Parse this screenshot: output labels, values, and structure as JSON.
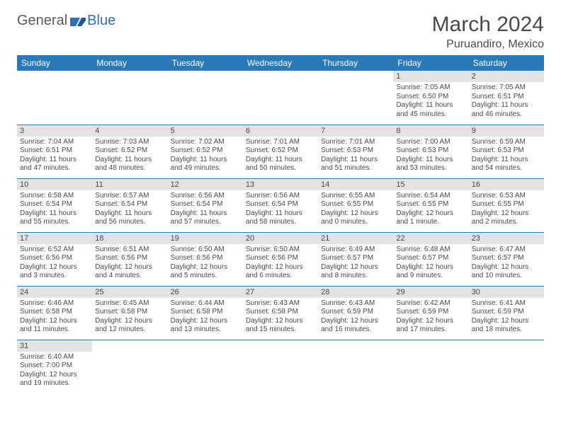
{
  "brand": {
    "general": "General",
    "blue": "Blue"
  },
  "title": "March 2024",
  "location": "Puruandiro, Mexico",
  "colors": {
    "header_bg": "#2a7ab8",
    "header_text": "#ffffff",
    "daynum_bg": "#e3e3e3",
    "text": "#4a4a4a",
    "row_divider": "#2a7ab8",
    "logo_gray": "#5a5a5a",
    "logo_blue": "#2a72b5"
  },
  "weekdays": [
    "Sunday",
    "Monday",
    "Tuesday",
    "Wednesday",
    "Thursday",
    "Friday",
    "Saturday"
  ],
  "weeks": [
    [
      null,
      null,
      null,
      null,
      null,
      {
        "day": "1",
        "sunrise": "Sunrise: 7:05 AM",
        "sunset": "Sunset: 6:50 PM",
        "daylight": "Daylight: 11 hours and 45 minutes."
      },
      {
        "day": "2",
        "sunrise": "Sunrise: 7:05 AM",
        "sunset": "Sunset: 6:51 PM",
        "daylight": "Daylight: 11 hours and 46 minutes."
      }
    ],
    [
      {
        "day": "3",
        "sunrise": "Sunrise: 7:04 AM",
        "sunset": "Sunset: 6:51 PM",
        "daylight": "Daylight: 11 hours and 47 minutes."
      },
      {
        "day": "4",
        "sunrise": "Sunrise: 7:03 AM",
        "sunset": "Sunset: 6:52 PM",
        "daylight": "Daylight: 11 hours and 48 minutes."
      },
      {
        "day": "5",
        "sunrise": "Sunrise: 7:02 AM",
        "sunset": "Sunset: 6:52 PM",
        "daylight": "Daylight: 11 hours and 49 minutes."
      },
      {
        "day": "6",
        "sunrise": "Sunrise: 7:01 AM",
        "sunset": "Sunset: 6:52 PM",
        "daylight": "Daylight: 11 hours and 50 minutes."
      },
      {
        "day": "7",
        "sunrise": "Sunrise: 7:01 AM",
        "sunset": "Sunset: 6:53 PM",
        "daylight": "Daylight: 11 hours and 51 minutes."
      },
      {
        "day": "8",
        "sunrise": "Sunrise: 7:00 AM",
        "sunset": "Sunset: 6:53 PM",
        "daylight": "Daylight: 11 hours and 53 minutes."
      },
      {
        "day": "9",
        "sunrise": "Sunrise: 6:59 AM",
        "sunset": "Sunset: 6:53 PM",
        "daylight": "Daylight: 11 hours and 54 minutes."
      }
    ],
    [
      {
        "day": "10",
        "sunrise": "Sunrise: 6:58 AM",
        "sunset": "Sunset: 6:54 PM",
        "daylight": "Daylight: 11 hours and 55 minutes."
      },
      {
        "day": "11",
        "sunrise": "Sunrise: 6:57 AM",
        "sunset": "Sunset: 6:54 PM",
        "daylight": "Daylight: 11 hours and 56 minutes."
      },
      {
        "day": "12",
        "sunrise": "Sunrise: 6:56 AM",
        "sunset": "Sunset: 6:54 PM",
        "daylight": "Daylight: 11 hours and 57 minutes."
      },
      {
        "day": "13",
        "sunrise": "Sunrise: 6:56 AM",
        "sunset": "Sunset: 6:54 PM",
        "daylight": "Daylight: 11 hours and 58 minutes."
      },
      {
        "day": "14",
        "sunrise": "Sunrise: 6:55 AM",
        "sunset": "Sunset: 6:55 PM",
        "daylight": "Daylight: 12 hours and 0 minutes."
      },
      {
        "day": "15",
        "sunrise": "Sunrise: 6:54 AM",
        "sunset": "Sunset: 6:55 PM",
        "daylight": "Daylight: 12 hours and 1 minute."
      },
      {
        "day": "16",
        "sunrise": "Sunrise: 6:53 AM",
        "sunset": "Sunset: 6:55 PM",
        "daylight": "Daylight: 12 hours and 2 minutes."
      }
    ],
    [
      {
        "day": "17",
        "sunrise": "Sunrise: 6:52 AM",
        "sunset": "Sunset: 6:56 PM",
        "daylight": "Daylight: 12 hours and 3 minutes."
      },
      {
        "day": "18",
        "sunrise": "Sunrise: 6:51 AM",
        "sunset": "Sunset: 6:56 PM",
        "daylight": "Daylight: 12 hours and 4 minutes."
      },
      {
        "day": "19",
        "sunrise": "Sunrise: 6:50 AM",
        "sunset": "Sunset: 6:56 PM",
        "daylight": "Daylight: 12 hours and 5 minutes."
      },
      {
        "day": "20",
        "sunrise": "Sunrise: 6:50 AM",
        "sunset": "Sunset: 6:56 PM",
        "daylight": "Daylight: 12 hours and 6 minutes."
      },
      {
        "day": "21",
        "sunrise": "Sunrise: 6:49 AM",
        "sunset": "Sunset: 6:57 PM",
        "daylight": "Daylight: 12 hours and 8 minutes."
      },
      {
        "day": "22",
        "sunrise": "Sunrise: 6:48 AM",
        "sunset": "Sunset: 6:57 PM",
        "daylight": "Daylight: 12 hours and 9 minutes."
      },
      {
        "day": "23",
        "sunrise": "Sunrise: 6:47 AM",
        "sunset": "Sunset: 6:57 PM",
        "daylight": "Daylight: 12 hours and 10 minutes."
      }
    ],
    [
      {
        "day": "24",
        "sunrise": "Sunrise: 6:46 AM",
        "sunset": "Sunset: 6:58 PM",
        "daylight": "Daylight: 12 hours and 11 minutes."
      },
      {
        "day": "25",
        "sunrise": "Sunrise: 6:45 AM",
        "sunset": "Sunset: 6:58 PM",
        "daylight": "Daylight: 12 hours and 12 minutes."
      },
      {
        "day": "26",
        "sunrise": "Sunrise: 6:44 AM",
        "sunset": "Sunset: 6:58 PM",
        "daylight": "Daylight: 12 hours and 13 minutes."
      },
      {
        "day": "27",
        "sunrise": "Sunrise: 6:43 AM",
        "sunset": "Sunset: 6:58 PM",
        "daylight": "Daylight: 12 hours and 15 minutes."
      },
      {
        "day": "28",
        "sunrise": "Sunrise: 6:43 AM",
        "sunset": "Sunset: 6:59 PM",
        "daylight": "Daylight: 12 hours and 16 minutes."
      },
      {
        "day": "29",
        "sunrise": "Sunrise: 6:42 AM",
        "sunset": "Sunset: 6:59 PM",
        "daylight": "Daylight: 12 hours and 17 minutes."
      },
      {
        "day": "30",
        "sunrise": "Sunrise: 6:41 AM",
        "sunset": "Sunset: 6:59 PM",
        "daylight": "Daylight: 12 hours and 18 minutes."
      }
    ],
    [
      {
        "day": "31",
        "sunrise": "Sunrise: 6:40 AM",
        "sunset": "Sunset: 7:00 PM",
        "daylight": "Daylight: 12 hours and 19 minutes."
      },
      null,
      null,
      null,
      null,
      null,
      null
    ]
  ]
}
